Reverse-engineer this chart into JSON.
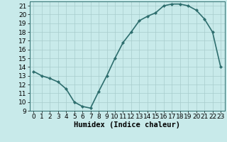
{
  "x": [
    0,
    1,
    2,
    3,
    4,
    5,
    6,
    7,
    8,
    9,
    10,
    11,
    12,
    13,
    14,
    15,
    16,
    17,
    18,
    19,
    20,
    21,
    22,
    23
  ],
  "y": [
    13.5,
    13.0,
    12.7,
    12.3,
    11.5,
    10.0,
    9.5,
    9.3,
    11.2,
    13.0,
    15.0,
    16.8,
    18.0,
    19.3,
    19.8,
    20.2,
    21.0,
    21.2,
    21.2,
    21.0,
    20.5,
    19.5,
    18.0,
    14.0
  ],
  "line_color": "#2e6e6e",
  "marker": "D",
  "marker_size": 2.0,
  "background_color": "#c8eaea",
  "grid_color": "#a8cccc",
  "xlabel": "Humidex (Indice chaleur)",
  "xlim": [
    -0.5,
    23.5
  ],
  "ylim": [
    9,
    21.5
  ],
  "yticks": [
    9,
    10,
    11,
    12,
    13,
    14,
    15,
    16,
    17,
    18,
    19,
    20,
    21
  ],
  "xticks": [
    0,
    1,
    2,
    3,
    4,
    5,
    6,
    7,
    8,
    9,
    10,
    11,
    12,
    13,
    14,
    15,
    16,
    17,
    18,
    19,
    20,
    21,
    22,
    23
  ],
  "xlabel_fontsize": 7.5,
  "tick_fontsize": 6.5,
  "line_width": 1.2
}
